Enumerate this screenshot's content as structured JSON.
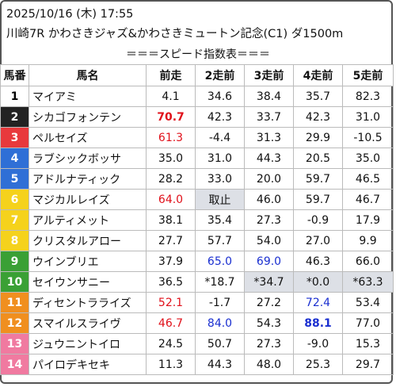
{
  "header": {
    "datetime": "2025/10/16 (木) 17:55",
    "race": "川崎7R かわさきジャズ&かわさきミュートン記念(C1) ダ1500m",
    "caption": "＝＝＝スピード指数表＝＝＝"
  },
  "table": {
    "columns": [
      "馬番",
      "馬名",
      "前走",
      "2走前",
      "3走前",
      "4走前",
      "5走前"
    ],
    "rows": [
      {
        "num": "1",
        "name": "マイアミ",
        "bg": "#ffffff",
        "fg": "#000000",
        "v": [
          "4.1",
          "34.6",
          "38.4",
          "35.7",
          "82.3"
        ],
        "style": [
          "",
          "",
          "",
          "",
          ""
        ]
      },
      {
        "num": "2",
        "name": "シカゴフォンテン",
        "bg": "#222222",
        "fg": "#ffffff",
        "v": [
          "70.7",
          "42.3",
          "33.7",
          "42.3",
          "31.0"
        ],
        "style": [
          "red bold",
          "",
          "",
          "",
          ""
        ]
      },
      {
        "num": "3",
        "name": "ペルセイズ",
        "bg": "#e8393c",
        "fg": "#ffffff",
        "v": [
          "61.3",
          "-4.4",
          "31.3",
          "29.9",
          "-10.5"
        ],
        "style": [
          "red",
          "",
          "",
          "",
          ""
        ]
      },
      {
        "num": "4",
        "name": "ラブシックボッサ",
        "bg": "#2f6fd6",
        "fg": "#ffffff",
        "v": [
          "35.0",
          "31.0",
          "44.3",
          "20.5",
          "35.0"
        ],
        "style": [
          "",
          "",
          "",
          "",
          ""
        ]
      },
      {
        "num": "5",
        "name": "アドルナティック",
        "bg": "#2f6fd6",
        "fg": "#ffffff",
        "v": [
          "28.2",
          "33.0",
          "20.0",
          "59.7",
          "46.5"
        ],
        "style": [
          "",
          "",
          "",
          "",
          ""
        ]
      },
      {
        "num": "6",
        "name": "マジカルレイズ",
        "bg": "#f5d21c",
        "fg": "#ffffff",
        "v": [
          "64.0",
          "取止",
          "46.0",
          "59.7",
          "46.7"
        ],
        "style": [
          "red",
          "gray",
          "",
          "",
          ""
        ]
      },
      {
        "num": "7",
        "name": "アルティメット",
        "bg": "#f5d21c",
        "fg": "#ffffff",
        "v": [
          "38.1",
          "35.4",
          "27.3",
          "-0.9",
          "17.9"
        ],
        "style": [
          "",
          "",
          "",
          "",
          ""
        ]
      },
      {
        "num": "8",
        "name": "クリスタルアロー",
        "bg": "#f5d21c",
        "fg": "#ffffff",
        "v": [
          "27.7",
          "57.7",
          "54.0",
          "27.0",
          "9.9"
        ],
        "style": [
          "",
          "",
          "",
          "",
          ""
        ]
      },
      {
        "num": "9",
        "name": "ウインブリエ",
        "bg": "#3aa035",
        "fg": "#ffffff",
        "v": [
          "37.9",
          "65.0",
          "69.0",
          "46.3",
          "66.0"
        ],
        "style": [
          "",
          "blue",
          "blue",
          "",
          ""
        ]
      },
      {
        "num": "10",
        "name": "セイウンサニー",
        "bg": "#3aa035",
        "fg": "#ffffff",
        "v": [
          "36.5",
          "*18.7",
          "*34.7",
          "*0.0",
          "*63.3"
        ],
        "style": [
          "",
          "",
          "gray",
          "gray",
          "gray"
        ]
      },
      {
        "num": "11",
        "name": "ディセントラライズ",
        "bg": "#f08f1f",
        "fg": "#ffffff",
        "v": [
          "52.1",
          "-1.7",
          "27.2",
          "72.4",
          "53.4"
        ],
        "style": [
          "red",
          "",
          "",
          "blue",
          ""
        ]
      },
      {
        "num": "12",
        "name": "スマイルスライヴ",
        "bg": "#f08f1f",
        "fg": "#ffffff",
        "v": [
          "46.7",
          "84.0",
          "54.3",
          "88.1",
          "77.0"
        ],
        "style": [
          "red",
          "blue",
          "",
          "blue bold",
          ""
        ]
      },
      {
        "num": "13",
        "name": "ジュウニントイロ",
        "bg": "#f07aa0",
        "fg": "#ffffff",
        "v": [
          "24.5",
          "50.7",
          "27.3",
          "-9.0",
          "15.3"
        ],
        "style": [
          "",
          "",
          "",
          "",
          ""
        ]
      },
      {
        "num": "14",
        "name": "パイロデキセキ",
        "bg": "#f07aa0",
        "fg": "#ffffff",
        "v": [
          "11.3",
          "44.3",
          "48.0",
          "25.3",
          "29.7"
        ],
        "style": [
          "",
          "",
          "",
          "",
          ""
        ]
      }
    ]
  }
}
